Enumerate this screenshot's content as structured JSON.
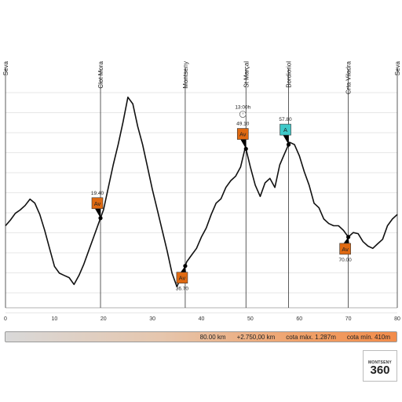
{
  "chart_data": {
    "type": "line",
    "xlim": [
      0,
      80
    ],
    "x_ticks": [
      "0",
      "10",
      "20",
      "30",
      "40",
      "50",
      "60",
      "70",
      "80"
    ],
    "ylim": [
      410,
      1287
    ],
    "grid": true,
    "series": [
      {
        "x": [
          0,
          1,
          2,
          3,
          4,
          5,
          6,
          7,
          8,
          9,
          10,
          11,
          12,
          13,
          14,
          15,
          16,
          17,
          18,
          19,
          20,
          21,
          22,
          23,
          24,
          25,
          26,
          27,
          28,
          29,
          30,
          31,
          32,
          33,
          34,
          35,
          36,
          37,
          38,
          39,
          40,
          41,
          42,
          43,
          44,
          45,
          46,
          47,
          48,
          49,
          50,
          51,
          52,
          53,
          54,
          55,
          56,
          57,
          58,
          59,
          60,
          61,
          62,
          63,
          64,
          65,
          66,
          67,
          68,
          69,
          70,
          71,
          72,
          73,
          74,
          75,
          76,
          77,
          78,
          79,
          80
        ],
        "y": [
          690,
          715,
          745,
          760,
          780,
          808,
          790,
          740,
          670,
          590,
          510,
          480,
          470,
          460,
          430,
          470,
          520,
          580,
          640,
          700,
          760,
          860,
          960,
          1050,
          1150,
          1260,
          1230,
          1130,
          1050,
          950,
          850,
          760,
          670,
          580,
          480,
          420,
          470,
          530,
          560,
          590,
          640,
          680,
          740,
          790,
          810,
          860,
          890,
          910,
          950,
          1040,
          950,
          870,
          820,
          880,
          900,
          860,
          960,
          1010,
          1060,
          1050,
          1000,
          930,
          870,
          790,
          770,
          720,
          700,
          690,
          690,
          670,
          640,
          660,
          655,
          620,
          600,
          590,
          610,
          630,
          690,
          720,
          740
        ]
      }
    ],
    "waypoints": [
      {
        "label": "Seva",
        "x": 0
      },
      {
        "label": "Clot Mora",
        "x": 19.4
      },
      {
        "label": "Montseny",
        "x": 36.7
      },
      {
        "label": "St Marçal",
        "x": 49.1
      },
      {
        "label": "Bordioriol",
        "x": 57.8
      },
      {
        "label": "Crta Viladra",
        "x": 70
      },
      {
        "label": "Seva",
        "x": 80
      }
    ],
    "markers": [
      {
        "label": "Av",
        "value": "19.40",
        "x": 19.4,
        "color": "#e06a12",
        "label_pos": "above"
      },
      {
        "label": "Av",
        "value": "36.70",
        "x": 36.7,
        "color": "#e06a12",
        "label_pos": "below"
      },
      {
        "label": "Av",
        "value": "49.10",
        "x": 49.1,
        "color": "#e06a12",
        "label_pos": "above",
        "time": "13:00h"
      },
      {
        "label": "A",
        "value": "57.80",
        "x": 57.8,
        "color": "#3ec9c9",
        "label_pos": "above"
      },
      {
        "label": "Av",
        "value": "70.00",
        "x": 70.0,
        "color": "#e06a12",
        "label_pos": "below"
      }
    ]
  },
  "summary": {
    "distance": "80.00 km",
    "elevation_gain": "+2.750,00 km",
    "max_alt": "cota màx. 1.287m",
    "min_alt": "cota mín. 410m"
  },
  "logo": {
    "text": "MONTSENY",
    "number": "360"
  },
  "colors": {
    "line": "#111111",
    "grid": "#cfcfcf",
    "accent_orange": "#e06a12",
    "accent_cyan": "#3ec9c9"
  }
}
